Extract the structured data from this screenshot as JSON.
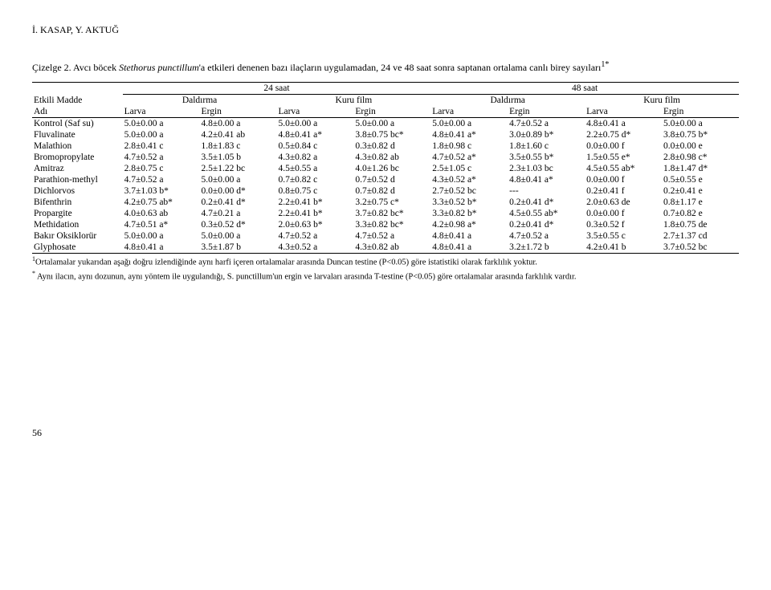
{
  "header_author": "İ. KASAP, Y. AKTUĞ",
  "caption_prefix": "Çizelge 2. Avcı böcek ",
  "caption_species": "Stethorus punctillum",
  "caption_rest": "'a etkileri denenen bazı ilaçların uygulamadan, 24 ve 48 saat sonra saptanan ortalama canlı birey sayıları",
  "caption_sup": "1*",
  "group_headers": {
    "h24": "24 saat",
    "h48": "48 saat"
  },
  "sub_levels": {
    "daldirma": "Daldırma",
    "kurufilm": "Kuru film"
  },
  "col_levels": {
    "larva": "Larva",
    "ergin": "Ergin"
  },
  "row_labels": {
    "etkili": "Etkili Madde",
    "adi": "Adı"
  },
  "rows": [
    {
      "label": "Kontrol (Saf su)",
      "c": [
        "5.0±0.00 a",
        "4.8±0.00 a",
        "5.0±0.00 a",
        "5.0±0.00 a",
        "5.0±0.00 a",
        "4.7±0.52 a",
        "4.8±0.41 a",
        "5.0±0.00 a"
      ]
    },
    {
      "label": "Fluvalinate",
      "c": [
        "5.0±0.00 a",
        "4.2±0.41 ab",
        "4.8±0.41 a*",
        "3.8±0.75 bc*",
        "4.8±0.41 a*",
        "3.0±0.89 b*",
        "2.2±0.75 d*",
        "3.8±0.75 b*"
      ]
    },
    {
      "label": "Malathion",
      "c": [
        "2.8±0.41 c",
        "1.8±1.83 c",
        "0.5±0.84 c",
        "0.3±0.82 d",
        "1.8±0.98 c",
        "1.8±1.60 c",
        "0.0±0.00 f",
        "0.0±0.00 e"
      ]
    },
    {
      "label": "Bromopropylate",
      "c": [
        "4.7±0.52 a",
        "3.5±1.05 b",
        "4.3±0.82 a",
        "4.3±0.82 ab",
        "4.7±0.52 a*",
        "3.5±0.55 b*",
        "1.5±0.55 e*",
        "2.8±0.98 c*"
      ]
    },
    {
      "label": "Amitraz",
      "c": [
        "2.8±0.75 c",
        "2.5±1.22 bc",
        "4.5±0.55 a",
        "4.0±1.26 bc",
        "2.5±1.05 c",
        "2.3±1.03 bc",
        "4.5±0.55 ab*",
        "1.8±1.47 d*"
      ]
    },
    {
      "label": "Parathion-methyl",
      "c": [
        "4.7±0.52 a",
        "5.0±0.00 a",
        "0.7±0.82 c",
        "0.7±0.52 d",
        "4.3±0.52 a*",
        "4.8±0.41 a*",
        "0.0±0.00 f",
        "0.5±0.55 e"
      ]
    },
    {
      "label": "Dichlorvos",
      "c": [
        "3.7±1.03 b*",
        "0.0±0.00 d*",
        "0.8±0.75 c",
        "0.7±0.82 d",
        "2.7±0.52 bc",
        "---",
        "0.2±0.41 f",
        "0.2±0.41 e"
      ]
    },
    {
      "label": "Bifenthrin",
      "c": [
        "4.2±0.75 ab*",
        "0.2±0.41 d*",
        "2.2±0.41 b*",
        "3.2±0.75 c*",
        "3.3±0.52 b*",
        "0.2±0.41 d*",
        "2.0±0.63 de",
        "0.8±1.17 e"
      ]
    },
    {
      "label": "Propargite",
      "c": [
        "4.0±0.63 ab",
        "4.7±0.21 a",
        "2.2±0.41 b*",
        "3.7±0.82 bc*",
        "3.3±0.82 b*",
        "4.5±0.55 ab*",
        "0.0±0.00 f",
        "0.7±0.82 e"
      ]
    },
    {
      "label": "Methidation",
      "c": [
        "4.7±0.51 a*",
        "0.3±0.52 d*",
        "2.0±0.63 b*",
        "3.3±0.82 bc*",
        "4.2±0.98 a*",
        "0.2±0.41 d*",
        "0.3±0.52 f",
        "1.8±0.75 de"
      ]
    },
    {
      "label": "Bakır Oksiklorür",
      "c": [
        "5.0±0.00 a",
        "5.0±0.00 a",
        "4.7±0.52 a",
        "4.7±0.52 a",
        "4.8±0.41 a",
        "4.7±0.52 a",
        "3.5±0.55 c",
        "2.7±1.37 cd"
      ]
    },
    {
      "label": "Glyphosate",
      "c": [
        "4.8±0.41 a",
        "3.5±1.87 b",
        "4.3±0.52 a",
        "4.3±0.82 ab",
        "4.8±0.41 a",
        "3.2±1.72 b",
        "4.2±0.41 b",
        "3.7±0.52 bc"
      ]
    }
  ],
  "footnotes": {
    "f1_sup": "1",
    "f1": "Ortalamalar yukarıdan aşağı doğru izlendiğinde aynı harfi içeren ortalamalar arasında Duncan testine (P<0.05) göre istatistiki olarak farklılık yoktur.",
    "f2_sup": "*",
    "f2_prefix": " Aynı ilacın, aynı dozunun, aynı yöntem ile uygulandığı, ",
    "f2_species": "S. punctillum",
    "f2_rest": "'un ergin ve larvaları arasında T-testine (P<0.05) göre ortalamalar arasında farklılık vardır."
  },
  "page_number": "56"
}
